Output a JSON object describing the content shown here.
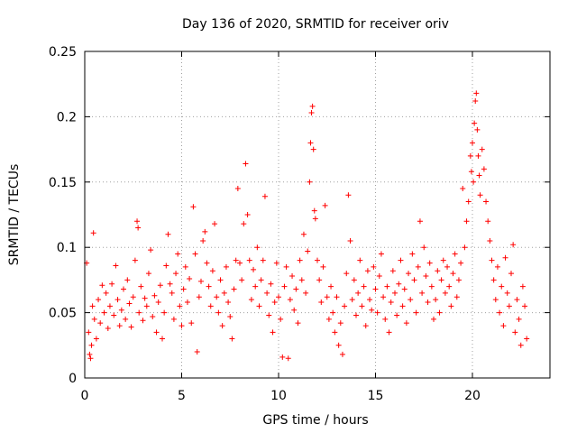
{
  "chart_data": {
    "type": "scatter",
    "title": "Day 136 of 2020, SRMTID for receiver oriv",
    "xlabel": "GPS time / hours",
    "ylabel": "SRMTID / TECUs",
    "xlim": [
      0,
      24
    ],
    "ylim": [
      0,
      0.25
    ],
    "xticks": [
      0,
      5,
      10,
      15,
      20
    ],
    "yticks": [
      0,
      0.05,
      0.1,
      0.15,
      0.2,
      0.25
    ],
    "ytick_labels": [
      "0",
      "0.05",
      "0.1",
      "0.15",
      "0.2",
      "0.25"
    ],
    "grid": true,
    "marker": "+",
    "color": "#ff0000",
    "points": [
      [
        0.1,
        0.088
      ],
      [
        0.2,
        0.035
      ],
      [
        0.25,
        0.018
      ],
      [
        0.3,
        0.015
      ],
      [
        0.35,
        0.025
      ],
      [
        0.4,
        0.055
      ],
      [
        0.45,
        0.111
      ],
      [
        0.5,
        0.045
      ],
      [
        0.6,
        0.03
      ],
      [
        0.7,
        0.06
      ],
      [
        0.8,
        0.042
      ],
      [
        0.9,
        0.071
      ],
      [
        1.0,
        0.05
      ],
      [
        1.1,
        0.065
      ],
      [
        1.2,
        0.038
      ],
      [
        1.3,
        0.055
      ],
      [
        1.4,
        0.072
      ],
      [
        1.5,
        0.048
      ],
      [
        1.6,
        0.086
      ],
      [
        1.7,
        0.06
      ],
      [
        1.8,
        0.04
      ],
      [
        1.9,
        0.052
      ],
      [
        2.0,
        0.068
      ],
      [
        2.1,
        0.045
      ],
      [
        2.2,
        0.075
      ],
      [
        2.3,
        0.057
      ],
      [
        2.4,
        0.039
      ],
      [
        2.5,
        0.062
      ],
      [
        2.6,
        0.09
      ],
      [
        2.7,
        0.12
      ],
      [
        2.75,
        0.115
      ],
      [
        2.8,
        0.05
      ],
      [
        2.9,
        0.07
      ],
      [
        3.0,
        0.044
      ],
      [
        3.1,
        0.061
      ],
      [
        3.2,
        0.055
      ],
      [
        3.3,
        0.08
      ],
      [
        3.4,
        0.098
      ],
      [
        3.5,
        0.047
      ],
      [
        3.6,
        0.063
      ],
      [
        3.7,
        0.035
      ],
      [
        3.8,
        0.058
      ],
      [
        3.9,
        0.071
      ],
      [
        4.0,
        0.03
      ],
      [
        4.1,
        0.05
      ],
      [
        4.2,
        0.086
      ],
      [
        4.3,
        0.11
      ],
      [
        4.4,
        0.072
      ],
      [
        4.5,
        0.065
      ],
      [
        4.6,
        0.045
      ],
      [
        4.7,
        0.08
      ],
      [
        4.8,
        0.095
      ],
      [
        4.9,
        0.055
      ],
      [
        5.0,
        0.04
      ],
      [
        5.1,
        0.068
      ],
      [
        5.2,
        0.085
      ],
      [
        5.3,
        0.058
      ],
      [
        5.4,
        0.076
      ],
      [
        5.5,
        0.042
      ],
      [
        5.6,
        0.131
      ],
      [
        5.7,
        0.095
      ],
      [
        5.8,
        0.02
      ],
      [
        5.9,
        0.062
      ],
      [
        6.0,
        0.074
      ],
      [
        6.1,
        0.105
      ],
      [
        6.2,
        0.112
      ],
      [
        6.3,
        0.088
      ],
      [
        6.4,
        0.07
      ],
      [
        6.5,
        0.055
      ],
      [
        6.6,
        0.082
      ],
      [
        6.7,
        0.118
      ],
      [
        6.8,
        0.062
      ],
      [
        6.9,
        0.05
      ],
      [
        7.0,
        0.075
      ],
      [
        7.1,
        0.04
      ],
      [
        7.2,
        0.065
      ],
      [
        7.3,
        0.085
      ],
      [
        7.4,
        0.058
      ],
      [
        7.5,
        0.047
      ],
      [
        7.6,
        0.03
      ],
      [
        7.7,
        0.068
      ],
      [
        7.8,
        0.09
      ],
      [
        7.9,
        0.145
      ],
      [
        8.0,
        0.088
      ],
      [
        8.1,
        0.075
      ],
      [
        8.2,
        0.118
      ],
      [
        8.3,
        0.164
      ],
      [
        8.4,
        0.125
      ],
      [
        8.5,
        0.09
      ],
      [
        8.6,
        0.06
      ],
      [
        8.7,
        0.083
      ],
      [
        8.8,
        0.07
      ],
      [
        8.9,
        0.1
      ],
      [
        9.0,
        0.055
      ],
      [
        9.1,
        0.075
      ],
      [
        9.2,
        0.09
      ],
      [
        9.3,
        0.139
      ],
      [
        9.4,
        0.065
      ],
      [
        9.5,
        0.048
      ],
      [
        9.6,
        0.072
      ],
      [
        9.7,
        0.035
      ],
      [
        9.8,
        0.058
      ],
      [
        9.9,
        0.088
      ],
      [
        10.0,
        0.062
      ],
      [
        10.1,
        0.045
      ],
      [
        10.2,
        0.016
      ],
      [
        10.3,
        0.07
      ],
      [
        10.4,
        0.085
      ],
      [
        10.5,
        0.015
      ],
      [
        10.6,
        0.06
      ],
      [
        10.7,
        0.078
      ],
      [
        10.8,
        0.052
      ],
      [
        10.9,
        0.068
      ],
      [
        11.0,
        0.042
      ],
      [
        11.1,
        0.09
      ],
      [
        11.2,
        0.075
      ],
      [
        11.3,
        0.11
      ],
      [
        11.4,
        0.065
      ],
      [
        11.5,
        0.097
      ],
      [
        11.6,
        0.15
      ],
      [
        11.65,
        0.18
      ],
      [
        11.7,
        0.203
      ],
      [
        11.75,
        0.208
      ],
      [
        11.8,
        0.175
      ],
      [
        11.85,
        0.128
      ],
      [
        11.9,
        0.122
      ],
      [
        12.0,
        0.09
      ],
      [
        12.1,
        0.075
      ],
      [
        12.2,
        0.058
      ],
      [
        12.3,
        0.085
      ],
      [
        12.4,
        0.132
      ],
      [
        12.5,
        0.062
      ],
      [
        12.6,
        0.045
      ],
      [
        12.7,
        0.07
      ],
      [
        12.8,
        0.05
      ],
      [
        12.9,
        0.035
      ],
      [
        13.0,
        0.062
      ],
      [
        13.1,
        0.025
      ],
      [
        13.2,
        0.042
      ],
      [
        13.3,
        0.018
      ],
      [
        13.4,
        0.055
      ],
      [
        13.5,
        0.08
      ],
      [
        13.6,
        0.14
      ],
      [
        13.7,
        0.105
      ],
      [
        13.8,
        0.06
      ],
      [
        13.9,
        0.075
      ],
      [
        14.0,
        0.048
      ],
      [
        14.1,
        0.065
      ],
      [
        14.2,
        0.09
      ],
      [
        14.3,
        0.055
      ],
      [
        14.4,
        0.07
      ],
      [
        14.5,
        0.04
      ],
      [
        14.6,
        0.082
      ],
      [
        14.7,
        0.06
      ],
      [
        14.8,
        0.052
      ],
      [
        14.9,
        0.085
      ],
      [
        15.0,
        0.068
      ],
      [
        15.1,
        0.05
      ],
      [
        15.2,
        0.078
      ],
      [
        15.3,
        0.095
      ],
      [
        15.4,
        0.062
      ],
      [
        15.5,
        0.045
      ],
      [
        15.6,
        0.07
      ],
      [
        15.7,
        0.035
      ],
      [
        15.8,
        0.058
      ],
      [
        15.9,
        0.082
      ],
      [
        16.0,
        0.065
      ],
      [
        16.1,
        0.048
      ],
      [
        16.2,
        0.072
      ],
      [
        16.3,
        0.09
      ],
      [
        16.4,
        0.055
      ],
      [
        16.5,
        0.068
      ],
      [
        16.6,
        0.042
      ],
      [
        16.7,
        0.08
      ],
      [
        16.8,
        0.06
      ],
      [
        16.9,
        0.095
      ],
      [
        17.0,
        0.075
      ],
      [
        17.1,
        0.05
      ],
      [
        17.2,
        0.085
      ],
      [
        17.3,
        0.12
      ],
      [
        17.4,
        0.065
      ],
      [
        17.5,
        0.1
      ],
      [
        17.6,
        0.078
      ],
      [
        17.7,
        0.058
      ],
      [
        17.8,
        0.088
      ],
      [
        17.9,
        0.07
      ],
      [
        18.0,
        0.045
      ],
      [
        18.1,
        0.06
      ],
      [
        18.2,
        0.082
      ],
      [
        18.3,
        0.05
      ],
      [
        18.4,
        0.075
      ],
      [
        18.5,
        0.09
      ],
      [
        18.6,
        0.065
      ],
      [
        18.7,
        0.085
      ],
      [
        18.8,
        0.07
      ],
      [
        18.9,
        0.055
      ],
      [
        19.0,
        0.08
      ],
      [
        19.1,
        0.095
      ],
      [
        19.2,
        0.062
      ],
      [
        19.3,
        0.075
      ],
      [
        19.4,
        0.088
      ],
      [
        19.5,
        0.145
      ],
      [
        19.6,
        0.1
      ],
      [
        19.7,
        0.12
      ],
      [
        19.8,
        0.135
      ],
      [
        19.9,
        0.17
      ],
      [
        19.95,
        0.158
      ],
      [
        20.0,
        0.18
      ],
      [
        20.05,
        0.15
      ],
      [
        20.1,
        0.195
      ],
      [
        20.15,
        0.212
      ],
      [
        20.2,
        0.218
      ],
      [
        20.25,
        0.19
      ],
      [
        20.3,
        0.17
      ],
      [
        20.35,
        0.155
      ],
      [
        20.4,
        0.14
      ],
      [
        20.5,
        0.175
      ],
      [
        20.6,
        0.16
      ],
      [
        20.7,
        0.135
      ],
      [
        20.8,
        0.12
      ],
      [
        20.9,
        0.105
      ],
      [
        21.0,
        0.09
      ],
      [
        21.1,
        0.075
      ],
      [
        21.2,
        0.06
      ],
      [
        21.3,
        0.085
      ],
      [
        21.4,
        0.05
      ],
      [
        21.5,
        0.07
      ],
      [
        21.6,
        0.04
      ],
      [
        21.7,
        0.092
      ],
      [
        21.8,
        0.065
      ],
      [
        21.9,
        0.055
      ],
      [
        22.0,
        0.08
      ],
      [
        22.1,
        0.102
      ],
      [
        22.2,
        0.035
      ],
      [
        22.3,
        0.06
      ],
      [
        22.4,
        0.045
      ],
      [
        22.5,
        0.025
      ],
      [
        22.6,
        0.07
      ],
      [
        22.7,
        0.055
      ],
      [
        22.8,
        0.03
      ]
    ]
  }
}
